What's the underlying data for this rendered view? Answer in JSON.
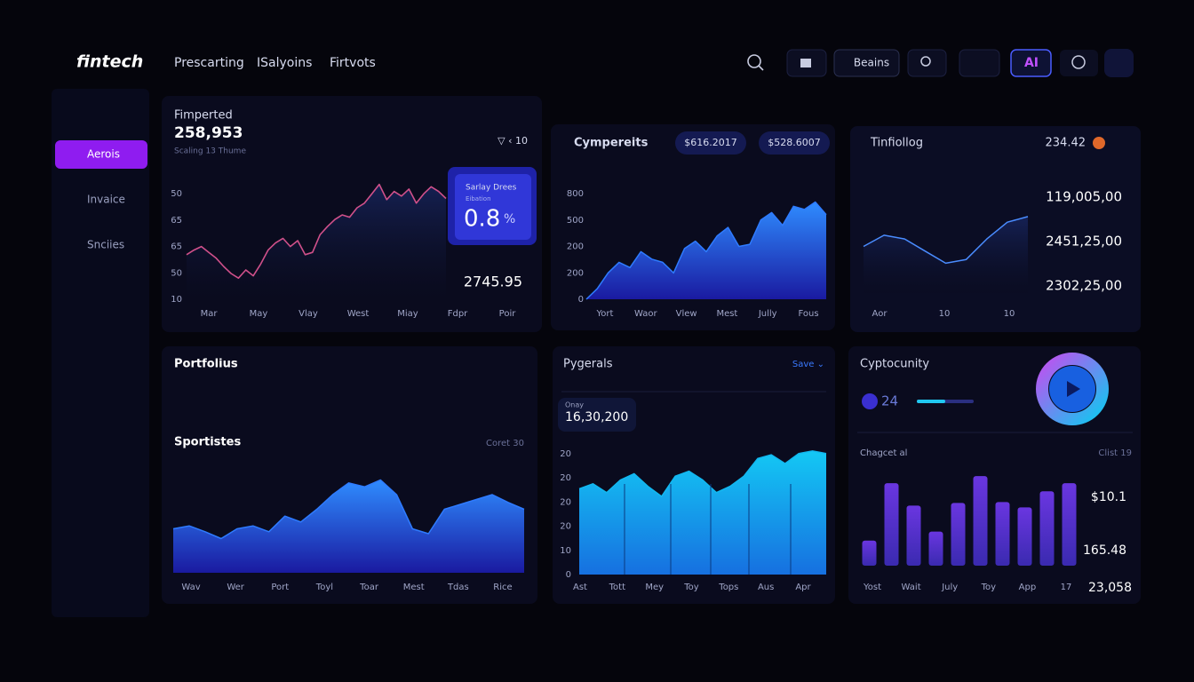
{
  "header": {
    "logo": "fintech",
    "nav": [
      "Prescarting",
      "ISalyoins",
      "Firtvots"
    ],
    "button": "Beains",
    "badge": "AI"
  },
  "sidebar": {
    "items": [
      "Aerois",
      "Invaice",
      "Snciies"
    ]
  },
  "panels": {
    "market": {
      "title": "Fimperted",
      "value": "258,953",
      "subtitle": "Scaling 13 Thume",
      "controls": "▽ ‹ 10",
      "card": {
        "title": "Sarlay Drees",
        "subtitle": "Eibation",
        "value": "0.8",
        "unit": "%"
      },
      "price": "2745.95",
      "chart": {
        "type": "line",
        "xlabels": [
          "Mar",
          "May",
          "Vlay",
          "West",
          "Miay",
          "Fdpr",
          "Poir"
        ],
        "ylabels": [
          "50",
          "65",
          "65",
          "50",
          "10"
        ],
        "ylim": [
          0,
          100
        ],
        "color": "#d0508a",
        "values": [
          38,
          42,
          45,
          40,
          35,
          28,
          22,
          18,
          25,
          20,
          30,
          42,
          48,
          52,
          45,
          50,
          38,
          40,
          55,
          62,
          68,
          72,
          70,
          78,
          82,
          90,
          98,
          85,
          92,
          88,
          94,
          82,
          90,
          96,
          92,
          86
        ]
      }
    },
    "compare": {
      "title": "Cympereits",
      "pills": [
        "$616.2017",
        "$528.6007"
      ],
      "chart": {
        "type": "area",
        "xlabels": [
          "Yort",
          "Waor",
          "Vlew",
          "Mest",
          "Jully",
          "Fous"
        ],
        "ylabels": [
          "800",
          "500",
          "200",
          "200",
          "0"
        ],
        "ylim": [
          0,
          100
        ],
        "color": "#2f7bff",
        "values": [
          0,
          10,
          25,
          35,
          30,
          45,
          38,
          35,
          25,
          48,
          55,
          45,
          60,
          68,
          50,
          52,
          75,
          82,
          70,
          88,
          85,
          92,
          80
        ]
      }
    },
    "portfolio": {
      "title": "Tinfiollog",
      "value": "234.42",
      "levels": [
        "119,005,00",
        "2451,25,00",
        "2302,25,00"
      ],
      "chart": {
        "type": "line",
        "xlabels": [
          "Aor",
          "10",
          "10"
        ],
        "ylim": [
          0,
          100
        ],
        "color": "#4a8cff",
        "values": [
          50,
          62,
          58,
          45,
          32,
          36,
          58,
          76,
          82
        ]
      }
    },
    "sports": {
      "title": "Portfolius",
      "subtitle": "Sportistes",
      "note": "Coret 30",
      "chart": {
        "type": "area",
        "xlabels": [
          "Wav",
          "Wer",
          "Port",
          "Toyl",
          "Toar",
          "Mest",
          "Tdas",
          "Rice"
        ],
        "ylim": [
          0,
          100
        ],
        "color": "#2f7bff",
        "values": [
          45,
          48,
          42,
          35,
          45,
          48,
          42,
          58,
          52,
          65,
          80,
          92,
          88,
          95,
          80,
          45,
          40,
          65,
          70,
          75,
          80,
          72,
          65
        ]
      }
    },
    "pygerals": {
      "title": "Pygerals",
      "action": "Save ⌄",
      "card": {
        "label": "Onay",
        "value": "16,30,200"
      },
      "chart": {
        "type": "area",
        "xlabels": [
          "Ast",
          "Tott",
          "Mey",
          "Toy",
          "Tops",
          "Aus",
          "Apr"
        ],
        "ylabels": [
          "20",
          "20",
          "20",
          "20",
          "10",
          "0"
        ],
        "ylim": [
          0,
          100
        ],
        "color": "#12b8f0",
        "values": [
          68,
          72,
          65,
          75,
          80,
          70,
          62,
          78,
          82,
          75,
          65,
          70,
          78,
          92,
          95,
          88,
          96,
          98,
          96
        ]
      }
    },
    "crypto": {
      "title": "Cyptocunity",
      "count": "24",
      "subtitle": "Chagcet al",
      "note": "Clist 19",
      "levels": [
        "$10.1",
        "165.48"
      ],
      "total": "23,058",
      "chart": {
        "type": "bar",
        "xlabels": [
          "Yost",
          "Wait",
          "July",
          "Toy",
          "App",
          "17"
        ],
        "ylim": [
          0,
          110
        ],
        "color": "#5a34d8",
        "values": [
          28,
          92,
          67,
          38,
          70,
          100,
          71,
          65,
          83,
          92
        ]
      }
    }
  }
}
